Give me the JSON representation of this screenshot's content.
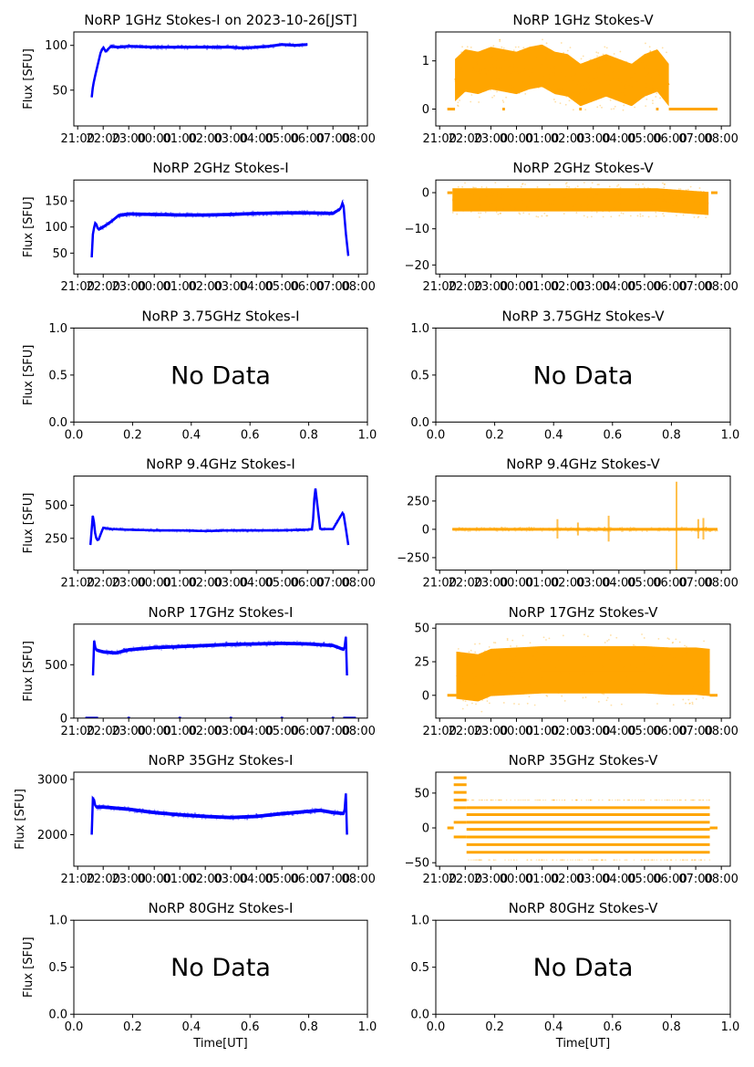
{
  "figure": {
    "suptitle_note": "",
    "xlabel": "Time[UT]",
    "ylabel": "Flux [SFU]",
    "no_data_text": "No Data",
    "colors": {
      "stokes_i": "#0000ff",
      "stokes_v": "#ffa500",
      "axes": "#000000"
    }
  },
  "chart_data": [
    {
      "id": "1ghz-i",
      "type": "scatter",
      "title": "NoRP 1GHz Stokes-I on 2023-10-26[JST]",
      "ylabel": "Flux [SFU]",
      "xlabel": "",
      "ylim": [
        10,
        115
      ],
      "yticks": [
        50,
        100
      ],
      "xticks": [
        "21:00",
        "22:00",
        "23:00",
        "00:00",
        "01:00",
        "02:00",
        "03:00",
        "04:00",
        "05:00",
        "06:00",
        "07:00",
        "08:00"
      ],
      "xlim_hours": [
        20.85,
        32.35
      ],
      "color": "#0000ff",
      "has_data": true,
      "series": [
        {
          "name": "Stokes-I",
          "x_hours": [
            21.55,
            21.6,
            21.7,
            21.8,
            21.9,
            22.0,
            22.1,
            22.3,
            22.6,
            23.0,
            24.0,
            25.0,
            26.0,
            27.0,
            27.5,
            28.0,
            28.5,
            29.0,
            29.5,
            30.0
          ],
          "y": [
            42,
            55,
            68,
            80,
            92,
            98,
            93,
            99,
            98,
            99,
            98,
            98,
            98,
            98,
            97,
            98,
            99,
            101,
            100,
            101
          ],
          "spread": 2
        }
      ]
    },
    {
      "id": "1ghz-v",
      "type": "scatter",
      "title": "NoRP 1GHz Stokes-V",
      "ylabel": "",
      "xlabel": "",
      "ylim": [
        -0.35,
        1.6
      ],
      "yticks": [
        0,
        1
      ],
      "xticks": [
        "21:00",
        "22:00",
        "23:00",
        "00:00",
        "01:00",
        "02:00",
        "03:00",
        "04:00",
        "05:00",
        "06:00",
        "07:00",
        "08:00"
      ],
      "xlim_hours": [
        20.85,
        32.35
      ],
      "color": "#ffa500",
      "has_data": true,
      "series": [
        {
          "name": "Stokes-V",
          "x_hours": [
            21.6,
            22.0,
            22.5,
            23.0,
            23.5,
            24.0,
            24.5,
            25.0,
            25.5,
            26.0,
            26.5,
            27.0,
            27.5,
            28.0,
            28.5,
            29.0,
            29.5,
            29.95
          ],
          "y": [
            0.6,
            0.8,
            0.75,
            0.85,
            0.8,
            0.75,
            0.85,
            0.9,
            0.75,
            0.7,
            0.5,
            0.6,
            0.7,
            0.6,
            0.5,
            0.7,
            0.8,
            0.5
          ],
          "spread": 0.55
        }
      ],
      "flat_segments": [
        [
          21.3,
          21.6,
          0
        ],
        [
          23.45,
          23.55,
          0
        ],
        [
          26.45,
          26.55,
          0
        ],
        [
          29.45,
          29.55,
          0
        ],
        [
          29.95,
          31.85,
          0
        ]
      ]
    },
    {
      "id": "2ghz-i",
      "type": "scatter",
      "title": "NoRP 2GHz Stokes-I",
      "ylabel": "Flux [SFU]",
      "xlabel": "",
      "ylim": [
        10,
        190
      ],
      "yticks": [
        50,
        100,
        150
      ],
      "xticks": [
        "21:00",
        "22:00",
        "23:00",
        "00:00",
        "01:00",
        "02:00",
        "03:00",
        "04:00",
        "05:00",
        "06:00",
        "07:00",
        "08:00"
      ],
      "xlim_hours": [
        20.85,
        32.35
      ],
      "color": "#0000ff",
      "has_data": true,
      "series": [
        {
          "name": "Stokes-I",
          "x_hours": [
            21.55,
            21.6,
            21.7,
            21.8,
            22.0,
            22.3,
            22.6,
            23.0,
            24.0,
            25.0,
            26.0,
            27.0,
            28.0,
            29.0,
            30.0,
            31.0,
            31.3,
            31.4,
            31.5,
            31.6
          ],
          "y": [
            42,
            90,
            110,
            95,
            100,
            110,
            122,
            125,
            124,
            123,
            123,
            124,
            126,
            127,
            127,
            126,
            135,
            150,
            90,
            45
          ],
          "spread": 4
        }
      ]
    },
    {
      "id": "2ghz-v",
      "type": "scatter",
      "title": "NoRP 2GHz Stokes-V",
      "ylabel": "",
      "xlabel": "",
      "ylim": [
        -22.5,
        3.5
      ],
      "yticks": [
        -20,
        -10,
        0
      ],
      "xticks": [
        "21:00",
        "22:00",
        "23:00",
        "00:00",
        "01:00",
        "02:00",
        "03:00",
        "04:00",
        "05:00",
        "06:00",
        "07:00",
        "08:00"
      ],
      "xlim_hours": [
        20.85,
        32.35
      ],
      "color": "#ffa500",
      "has_data": true,
      "series": [
        {
          "name": "Stokes-V",
          "x_hours": [
            21.5,
            22.5,
            23.5,
            24.5,
            25.5,
            26.5,
            27.5,
            28.5,
            29.5,
            30.5,
            31.5
          ],
          "y": [
            -2,
            -2,
            -2,
            -2,
            -2,
            -2,
            -2,
            -2,
            -2,
            -2.5,
            -3
          ],
          "spread": 4
        }
      ],
      "flat_segments": [
        [
          21.3,
          21.5,
          0
        ],
        [
          31.6,
          31.85,
          0
        ]
      ]
    },
    {
      "id": "3.75ghz-i",
      "type": "scatter",
      "title": "NoRP 3.75GHz Stokes-I",
      "ylabel": "Flux [SFU]",
      "xlabel": "",
      "ylim": [
        0,
        1
      ],
      "yticks": [
        "0.0",
        "0.5",
        "1.0"
      ],
      "xticks": [
        "0.0",
        "0.2",
        "0.4",
        "0.6",
        "0.8",
        "1.0"
      ],
      "has_data": false,
      "annotation": "No Data"
    },
    {
      "id": "3.75ghz-v",
      "type": "scatter",
      "title": "NoRP 3.75GHz Stokes-V",
      "ylabel": "",
      "xlabel": "",
      "ylim": [
        0,
        1
      ],
      "yticks": [
        "0.0",
        "0.5",
        "1.0"
      ],
      "xticks": [
        "0.0",
        "0.2",
        "0.4",
        "0.6",
        "0.8",
        "1.0"
      ],
      "has_data": false,
      "annotation": "No Data"
    },
    {
      "id": "9.4ghz-i",
      "type": "scatter",
      "title": "NoRP 9.4GHz Stokes-I",
      "ylabel": "Flux [SFU]",
      "xlabel": "",
      "ylim": [
        10,
        720
      ],
      "yticks": [
        250,
        500
      ],
      "xticks": [
        "21:00",
        "22:00",
        "23:00",
        "00:00",
        "01:00",
        "02:00",
        "03:00",
        "04:00",
        "05:00",
        "06:00",
        "07:00",
        "08:00"
      ],
      "xlim_hours": [
        20.85,
        32.35
      ],
      "color": "#0000ff",
      "has_data": true,
      "series": [
        {
          "name": "Stokes-I",
          "x_hours": [
            21.5,
            21.6,
            21.7,
            21.8,
            22.0,
            22.3,
            23.0,
            24.0,
            25.0,
            26.0,
            27.0,
            28.0,
            29.0,
            30.0,
            30.2,
            30.3,
            30.5,
            31.0,
            31.4,
            31.5,
            31.6
          ],
          "y": [
            200,
            440,
            260,
            230,
            330,
            320,
            315,
            310,
            310,
            305,
            310,
            310,
            310,
            315,
            320,
            650,
            320,
            320,
            450,
            330,
            200
          ],
          "spread": 10
        }
      ]
    },
    {
      "id": "9.4ghz-v",
      "type": "scatter",
      "title": "NoRP 9.4GHz Stokes-V",
      "ylabel": "",
      "xlabel": "",
      "ylim": [
        -360,
        470
      ],
      "yticks": [
        -250,
        0,
        250
      ],
      "xticks": [
        "21:00",
        "22:00",
        "23:00",
        "00:00",
        "01:00",
        "02:00",
        "03:00",
        "04:00",
        "05:00",
        "06:00",
        "07:00",
        "08:00"
      ],
      "xlim_hours": [
        20.85,
        32.35
      ],
      "color": "#ffa500",
      "has_data": true,
      "series": [
        {
          "name": "Stokes-V",
          "x_hours": [
            21.5,
            22.0,
            23.0,
            24.0,
            25.0,
            25.6,
            26.0,
            26.4,
            27.0,
            27.6,
            28.0,
            29.0,
            30.0,
            30.25,
            30.5,
            31.1,
            31.3,
            31.5,
            31.85
          ],
          "y": [
            0,
            0,
            0,
            0,
            0,
            0,
            0,
            0,
            0,
            0,
            0,
            0,
            0,
            0,
            0,
            0,
            0,
            0,
            0
          ],
          "bursts": [
            [
              25.6,
              90
            ],
            [
              26.4,
              60
            ],
            [
              27.6,
              120
            ],
            [
              30.25,
              420
            ],
            [
              31.1,
              90
            ],
            [
              31.3,
              100
            ]
          ],
          "spread": 15
        }
      ]
    },
    {
      "id": "17ghz-i",
      "type": "scatter",
      "title": "NoRP 17GHz Stokes-I",
      "ylabel": "Flux [SFU]",
      "xlabel": "",
      "ylim": [
        0,
        880
      ],
      "yticks": [
        0,
        500
      ],
      "xticks": [
        "21:00",
        "22:00",
        "23:00",
        "00:00",
        "01:00",
        "02:00",
        "03:00",
        "04:00",
        "05:00",
        "06:00",
        "07:00",
        "08:00"
      ],
      "xlim_hours": [
        20.85,
        32.35
      ],
      "color": "#0000ff",
      "has_data": true,
      "series": [
        {
          "name": "Stokes-I",
          "x_hours": [
            21.6,
            21.65,
            21.7,
            22.0,
            22.5,
            23.0,
            24.0,
            25.0,
            26.0,
            27.0,
            28.0,
            29.0,
            30.0,
            31.0,
            31.45,
            31.5,
            31.55
          ],
          "y": [
            400,
            760,
            640,
            620,
            610,
            640,
            660,
            670,
            680,
            690,
            695,
            700,
            695,
            680,
            640,
            800,
            400
          ],
          "spread": 20
        }
      ],
      "flat_segments": [
        [
          21.3,
          21.8,
          0
        ],
        [
          22.95,
          23.05,
          0
        ],
        [
          24.95,
          25.05,
          0
        ],
        [
          26.95,
          27.05,
          0
        ],
        [
          28.95,
          29.05,
          0
        ],
        [
          30.95,
          31.05,
          0
        ],
        [
          31.4,
          31.9,
          0
        ]
      ]
    },
    {
      "id": "17ghz-v",
      "type": "scatter",
      "title": "NoRP 17GHz Stokes-V",
      "ylabel": "",
      "xlabel": "",
      "ylim": [
        -17,
        53
      ],
      "yticks": [
        0,
        25,
        50
      ],
      "xticks": [
        "21:00",
        "22:00",
        "23:00",
        "00:00",
        "01:00",
        "02:00",
        "03:00",
        "04:00",
        "05:00",
        "06:00",
        "07:00",
        "08:00"
      ],
      "xlim_hours": [
        20.85,
        32.35
      ],
      "color": "#ffa500",
      "has_data": true,
      "series": [
        {
          "name": "Stokes-V",
          "x_hours": [
            21.65,
            22.5,
            23.0,
            24.0,
            25.0,
            26.0,
            27.0,
            28.0,
            29.0,
            30.0,
            31.0,
            31.55
          ],
          "y": [
            15,
            13,
            17,
            18,
            19,
            19,
            19,
            19,
            19,
            18,
            18,
            17
          ],
          "spread": 22
        }
      ],
      "flat_segments": [
        [
          21.3,
          21.65,
          0
        ],
        [
          31.55,
          31.85,
          0
        ]
      ]
    },
    {
      "id": "35ghz-i",
      "type": "scatter",
      "title": "NoRP 35GHz Stokes-I",
      "ylabel": "Flux [SFU]",
      "xlabel": "",
      "ylim": [
        1430,
        3130
      ],
      "yticks": [
        2000,
        3000
      ],
      "xticks": [
        "21:00",
        "22:00",
        "23:00",
        "00:00",
        "01:00",
        "02:00",
        "03:00",
        "04:00",
        "05:00",
        "06:00",
        "07:00",
        "08:00"
      ],
      "xlim_hours": [
        20.85,
        32.35
      ],
      "color": "#0000ff",
      "has_data": true,
      "series": [
        {
          "name": "Stokes-I",
          "x_hours": [
            21.55,
            21.6,
            21.7,
            22.0,
            23.0,
            24.0,
            25.0,
            26.0,
            27.0,
            28.0,
            29.0,
            30.0,
            30.5,
            31.0,
            31.45,
            31.5,
            31.55
          ],
          "y": [
            2000,
            2720,
            2500,
            2500,
            2460,
            2400,
            2360,
            2330,
            2310,
            2330,
            2380,
            2420,
            2440,
            2400,
            2380,
            2820,
            2000
          ],
          "spread": 40
        }
      ]
    },
    {
      "id": "35ghz-v",
      "type": "scatter",
      "title": "NoRP 35GHz Stokes-V",
      "ylabel": "",
      "xlabel": "",
      "ylim": [
        -55,
        80
      ],
      "yticks": [
        -50,
        0,
        50
      ],
      "xticks": [
        "21:00",
        "22:00",
        "23:00",
        "00:00",
        "01:00",
        "02:00",
        "03:00",
        "04:00",
        "05:00",
        "06:00",
        "07:00",
        "08:00"
      ],
      "xlim_hours": [
        20.85,
        32.35
      ],
      "color": "#ffa500",
      "has_data": true,
      "series": [
        {
          "name": "Stokes-V",
          "levels": [
            -35,
            -24,
            -13,
            -2,
            8,
            19,
            29
          ],
          "x_range_hours": [
            22.05,
            31.55
          ]
        }
      ],
      "early_levels": {
        "x_range_hours": [
          21.55,
          22.05
        ],
        "levels": [
          -13,
          8,
          29,
          40,
          51,
          62,
          72
        ]
      },
      "flat_segments": [
        [
          21.3,
          21.55,
          0
        ],
        [
          31.55,
          31.85,
          0
        ]
      ]
    },
    {
      "id": "80ghz-i",
      "type": "scatter",
      "title": "NoRP 80GHz Stokes-I",
      "ylabel": "Flux [SFU]",
      "xlabel": "Time[UT]",
      "ylim": [
        0,
        1
      ],
      "yticks": [
        "0.0",
        "0.5",
        "1.0"
      ],
      "xticks": [
        "0.0",
        "0.2",
        "0.4",
        "0.6",
        "0.8",
        "1.0"
      ],
      "has_data": false,
      "annotation": "No Data"
    },
    {
      "id": "80ghz-v",
      "type": "scatter",
      "title": "NoRP 80GHz Stokes-V",
      "ylabel": "",
      "xlabel": "Time[UT]",
      "ylim": [
        0,
        1
      ],
      "yticks": [
        "0.0",
        "0.5",
        "1.0"
      ],
      "xticks": [
        "0.0",
        "0.2",
        "0.4",
        "0.6",
        "0.8",
        "1.0"
      ],
      "has_data": false,
      "annotation": "No Data"
    }
  ]
}
